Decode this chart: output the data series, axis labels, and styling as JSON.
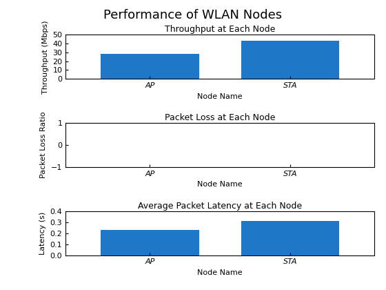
{
  "suptitle": "Performance of WLAN Nodes",
  "nodes": [
    "AP",
    "STA"
  ],
  "throughput_values": [
    28.0,
    43.0
  ],
  "throughput_title": "Throughput at Each Node",
  "throughput_xlabel": "Node Name",
  "throughput_ylabel": "Throughput (Mbps)",
  "throughput_ylim": [
    0,
    50
  ],
  "throughput_yticks": [
    0,
    10,
    20,
    30,
    40,
    50
  ],
  "packet_loss_values": [
    0.0,
    0.0
  ],
  "packet_loss_title": "Packet Loss at Each Node",
  "packet_loss_xlabel": "Node Name",
  "packet_loss_ylabel": "Packet Loss Ratio",
  "packet_loss_ylim": [
    -1,
    1
  ],
  "packet_loss_yticks": [
    -1,
    0,
    1
  ],
  "latency_values": [
    0.23,
    0.31
  ],
  "latency_title": "Average Packet Latency at Each Node",
  "latency_xlabel": "Node Name",
  "latency_ylabel": "Latency (s)",
  "latency_ylim": [
    0,
    0.4
  ],
  "latency_yticks": [
    0,
    0.1,
    0.2,
    0.3,
    0.4
  ],
  "bar_color": "#1f77c8",
  "bar_width": 0.7,
  "suptitle_fontsize": 13,
  "title_fontsize": 9,
  "label_fontsize": 8,
  "tick_fontsize": 8
}
